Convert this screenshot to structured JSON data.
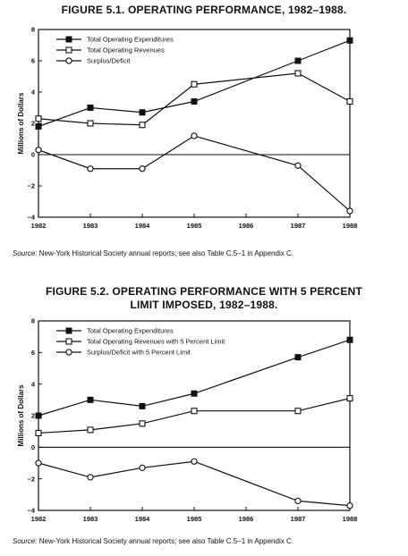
{
  "charts": [
    {
      "title": "FIGURE 5.1.   OPERATING PERFORMANCE, 1982–1988.",
      "source_label": "Source:",
      "source_text": " New-York Historical Society annual reports; see also Table C.5–1 in Appendix C."
    },
    {
      "title_line1": "FIGURE 5.2.   OPERATING PERFORMANCE WITH 5 PERCENT",
      "title_line2": "LIMIT IMPOSED, 1982–1988.",
      "source_label": "Source:",
      "source_text": " New-York Historical Society annual reports; see also Table C.5–1 in Appendix C."
    }
  ],
  "chart_data": [
    {
      "type": "line",
      "title": "FIGURE 5.1.   OPERATING PERFORMANCE, 1982–1988.",
      "xlabel": "",
      "ylabel": "Millions of Dollars",
      "x": [
        1982,
        1983,
        1984,
        1985,
        1986,
        1987,
        1988
      ],
      "xlim": [
        1982,
        1988
      ],
      "ylim": [
        -4,
        8
      ],
      "yticks": [
        -4,
        -2,
        0,
        2,
        4,
        6,
        8
      ],
      "grid": false,
      "zero_line": true,
      "legend_position": "top-left",
      "series": [
        {
          "name": "Total Operating Expenditures",
          "marker": "filled-square",
          "x": [
            1982,
            1983,
            1984,
            1985,
            1987,
            1988
          ],
          "y": [
            1.8,
            3.0,
            2.7,
            3.4,
            6.0,
            7.3
          ]
        },
        {
          "name": "Total Operating Revenues",
          "marker": "open-square",
          "x": [
            1982,
            1983,
            1984,
            1985,
            1987,
            1988
          ],
          "y": [
            2.3,
            2.0,
            1.9,
            4.5,
            5.2,
            3.4
          ]
        },
        {
          "name": "Surplus/Deficit",
          "marker": "open-circle",
          "x": [
            1982,
            1983,
            1984,
            1985,
            1987,
            1988
          ],
          "y": [
            0.3,
            -0.9,
            -0.9,
            1.2,
            -0.7,
            -3.6
          ]
        }
      ]
    },
    {
      "type": "line",
      "title": "FIGURE 5.2.   OPERATING PERFORMANCE WITH 5 PERCENT LIMIT IMPOSED, 1982–1988.",
      "xlabel": "",
      "ylabel": "Millions of Dollars",
      "x": [
        1982,
        1983,
        1984,
        1985,
        1986,
        1987,
        1988
      ],
      "xlim": [
        1982,
        1988
      ],
      "ylim": [
        -4,
        8
      ],
      "yticks": [
        -4,
        -2,
        0,
        2,
        4,
        6,
        8
      ],
      "grid": false,
      "zero_line": true,
      "legend_position": "top-left",
      "series": [
        {
          "name": "Total Operating Expenditures",
          "marker": "filled-square",
          "x": [
            1982,
            1983,
            1984,
            1985,
            1987,
            1988
          ],
          "y": [
            2.0,
            3.0,
            2.6,
            3.4,
            5.7,
            6.8
          ]
        },
        {
          "name": "Total Operating Revenues with 5 Percent Limit",
          "marker": "open-square",
          "x": [
            1982,
            1983,
            1984,
            1985,
            1987,
            1988
          ],
          "y": [
            0.9,
            1.1,
            1.5,
            2.3,
            2.3,
            3.1
          ]
        },
        {
          "name": "Surplus/Deficit with 5 Percent Limit",
          "marker": "open-circle",
          "x": [
            1982,
            1983,
            1984,
            1985,
            1987,
            1988
          ],
          "y": [
            -1.0,
            -1.9,
            -1.3,
            -0.9,
            -3.4,
            -3.7
          ]
        }
      ]
    }
  ]
}
